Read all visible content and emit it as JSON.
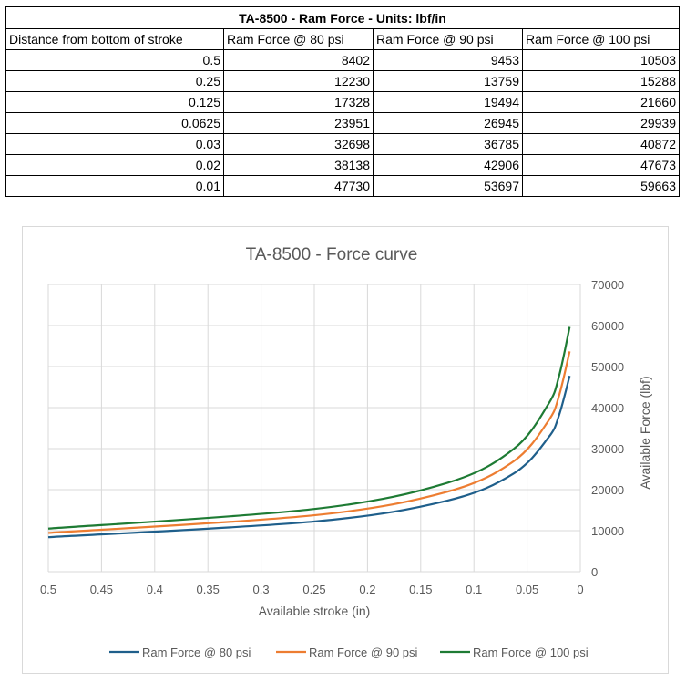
{
  "table": {
    "title": "TA-8500 - Ram Force - Units: lbf/in",
    "headers": [
      "Distance from bottom of stroke",
      "Ram Force @ 80 psi",
      "Ram Force @ 90 psi",
      "Ram Force @ 100 psi"
    ],
    "rows": [
      [
        "0.5",
        "8402",
        "9453",
        "10503"
      ],
      [
        "0.25",
        "12230",
        "13759",
        "15288"
      ],
      [
        "0.125",
        "17328",
        "19494",
        "21660"
      ],
      [
        "0.0625",
        "23951",
        "26945",
        "29939"
      ],
      [
        "0.03",
        "32698",
        "36785",
        "40872"
      ],
      [
        "0.02",
        "38138",
        "42906",
        "47673"
      ],
      [
        "0.01",
        "47730",
        "53697",
        "59663"
      ]
    ]
  },
  "chart_data": {
    "type": "line",
    "title": "TA-8500 - Force curve",
    "xlabel": "Available stroke (in)",
    "ylabel": "Available Force (lbf)",
    "x": [
      0.5,
      0.25,
      0.125,
      0.0625,
      0.03,
      0.02,
      0.01
    ],
    "xlim": [
      0.5,
      0
    ],
    "ylim": [
      0,
      70000
    ],
    "x_ticks": [
      "0.5",
      "0.45",
      "0.4",
      "0.35",
      "0.3",
      "0.25",
      "0.2",
      "0.15",
      "0.1",
      "0.05",
      "0"
    ],
    "y_ticks": [
      "0",
      "10000",
      "20000",
      "30000",
      "40000",
      "50000",
      "60000",
      "70000"
    ],
    "grid": true,
    "legend_position": "bottom",
    "series": [
      {
        "name": "Ram Force @ 80 psi",
        "color": "#1f5f8b",
        "values": [
          8402,
          12230,
          17328,
          23951,
          32698,
          38138,
          47730
        ]
      },
      {
        "name": "Ram Force @ 90 psi",
        "color": "#ed7d31",
        "values": [
          9453,
          13759,
          19494,
          26945,
          36785,
          42906,
          53697
        ]
      },
      {
        "name": "Ram Force @ 100 psi",
        "color": "#1e7b34",
        "values": [
          10503,
          15288,
          21660,
          29939,
          40872,
          47673,
          59663
        ]
      }
    ]
  }
}
